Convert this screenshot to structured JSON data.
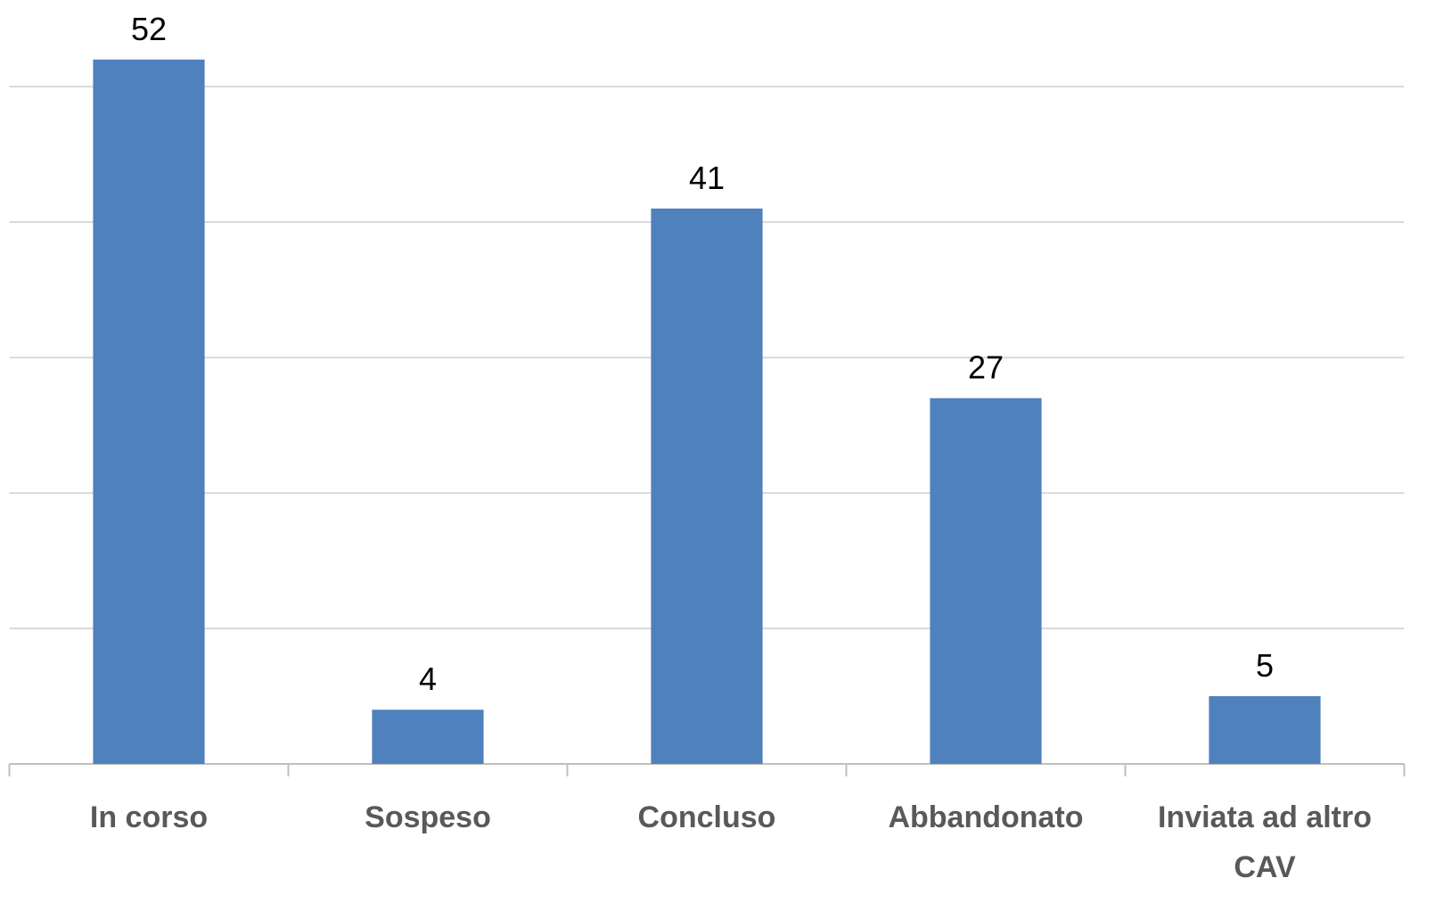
{
  "chart_data": {
    "type": "bar",
    "categories": [
      "In corso",
      "Sospeso",
      "Concluso",
      "Abbandonato",
      "Inviata ad altro CAV"
    ],
    "values": [
      52,
      4,
      41,
      27,
      5
    ],
    "color": "#4f81bd",
    "ylim": [
      0,
      56
    ],
    "yticks": [
      0,
      10,
      20,
      30,
      40,
      50
    ],
    "grid": true
  }
}
